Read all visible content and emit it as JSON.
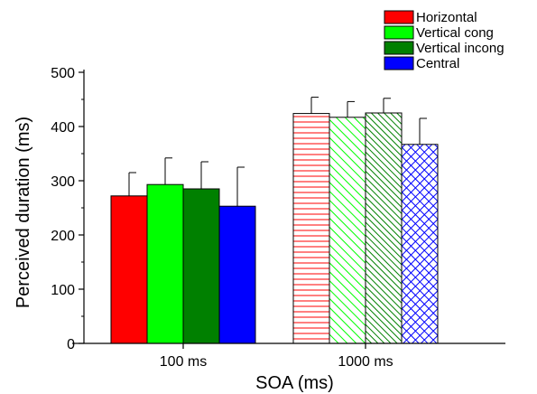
{
  "chart_data": {
    "type": "bar",
    "title": "",
    "xlabel": "SOA (ms)",
    "ylabel": "Perceived duration (ms)",
    "categories": [
      "100 ms",
      "1000 ms"
    ],
    "ylim": [
      0,
      500
    ],
    "yticks": [
      0,
      100,
      200,
      300,
      400,
      500
    ],
    "grid": false,
    "legend_position": "top-right",
    "series": [
      {
        "name": "Horizontal",
        "color": "#ff0000",
        "pattern_1000ms": "horizontal-lines",
        "values": [
          272,
          424
        ],
        "errors": [
          43,
          30
        ]
      },
      {
        "name": "Vertical cong",
        "color": "#00ff00",
        "pattern_1000ms": "diagonal-lines",
        "values": [
          293,
          417
        ],
        "errors": [
          49,
          29
        ]
      },
      {
        "name": "Vertical incong",
        "color": "#008000",
        "pattern_1000ms": "diagonal-lines-dense",
        "values": [
          285,
          425
        ],
        "errors": [
          50,
          27
        ]
      },
      {
        "name": "Central",
        "color": "#0000ff",
        "pattern_1000ms": "crosshatch",
        "values": [
          253,
          367
        ],
        "errors": [
          72,
          48
        ]
      }
    ]
  }
}
